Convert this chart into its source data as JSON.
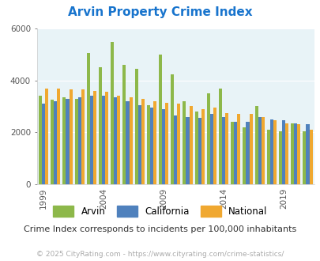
{
  "title": "Arvin Property Crime Index",
  "title_color": "#1874cd",
  "years": [
    1999,
    2000,
    2001,
    2002,
    2003,
    2004,
    2005,
    2006,
    2007,
    2008,
    2009,
    2010,
    2011,
    2012,
    2013,
    2014,
    2015,
    2016,
    2017,
    2018,
    2019,
    2020,
    2021
  ],
  "arvin": [
    3400,
    3250,
    3350,
    3300,
    5050,
    4500,
    5500,
    4600,
    4450,
    3050,
    5000,
    4250,
    3200,
    2800,
    3500,
    3700,
    2400,
    2200,
    3000,
    2100,
    2050,
    2350,
    2050
  ],
  "california": [
    3100,
    3200,
    3300,
    3350,
    3400,
    3400,
    3350,
    3200,
    3050,
    2950,
    2900,
    2650,
    2600,
    2550,
    2700,
    2600,
    2400,
    2400,
    2600,
    2500,
    2450,
    2350,
    2300
  ],
  "national": [
    3700,
    3700,
    3650,
    3650,
    3600,
    3550,
    3400,
    3350,
    3300,
    3200,
    3150,
    3100,
    3000,
    2900,
    2950,
    2750,
    2700,
    2700,
    2600,
    2450,
    2350,
    2300,
    2100
  ],
  "arvin_color": "#8db84a",
  "california_color": "#4f81bd",
  "national_color": "#f0a830",
  "bg_color": "#e8f3f7",
  "ylim": [
    0,
    6000
  ],
  "yticks": [
    0,
    2000,
    4000,
    6000
  ],
  "tick_years": [
    1999,
    2004,
    2009,
    2014,
    2019
  ],
  "subtitle": "Crime Index corresponds to incidents per 100,000 inhabitants",
  "footer": "© 2025 CityRating.com - https://www.cityrating.com/crime-statistics/",
  "subtitle_color": "#333333",
  "footer_color": "#aaaaaa",
  "subtitle_fontsize": 8,
  "footer_fontsize": 6.5,
  "title_fontsize": 11
}
